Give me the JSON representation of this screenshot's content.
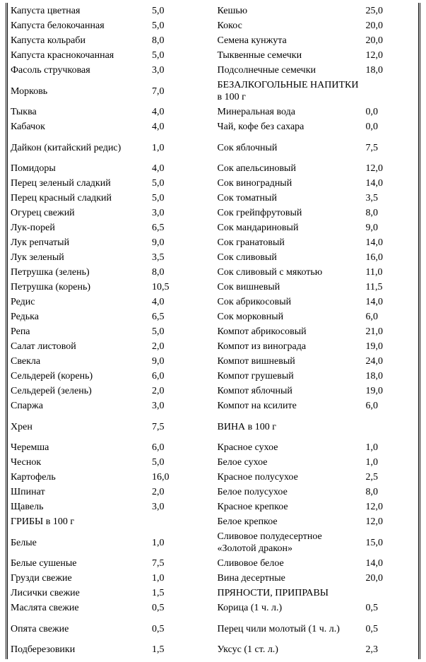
{
  "left": [
    {
      "label": "Капуста цветная",
      "value": "5,0"
    },
    {
      "label": "Капуста белокочанная",
      "value": "5,0"
    },
    {
      "label": "Капуста кольраби",
      "value": "8,0"
    },
    {
      "label": "Капуста краснокочанная",
      "value": "5,0"
    },
    {
      "label": "Фасоль стручковая",
      "value": "3,0"
    },
    {
      "label": "Морковь",
      "value": "7,0",
      "tall": true
    },
    {
      "label": "Тыква",
      "value": "4,0"
    },
    {
      "label": "Кабачок",
      "value": "4,0"
    },
    {
      "label": "Дайкон (китайский редис)",
      "value": "1,0",
      "tall": true
    },
    {
      "label": "Помидоры",
      "value": "4,0"
    },
    {
      "label": "Перец зеленый сладкий",
      "value": "5,0"
    },
    {
      "label": "Перец красный сладкий",
      "value": "5,0"
    },
    {
      "label": "Огурец свежий",
      "value": "3,0"
    },
    {
      "label": "Лук-порей",
      "value": "6,5"
    },
    {
      "label": "Лук репчатый",
      "value": "9,0"
    },
    {
      "label": "Лук зеленый",
      "value": "3,5"
    },
    {
      "label": "Петрушка (зелень)",
      "value": "8,0"
    },
    {
      "label": "Петрушка (корень)",
      "value": "10,5"
    },
    {
      "label": "Редис",
      "value": "4,0"
    },
    {
      "label": "Редька",
      "value": "6,5"
    },
    {
      "label": "Репа",
      "value": "5,0"
    },
    {
      "label": "Салат листовой",
      "value": "2,0"
    },
    {
      "label": "Свекла",
      "value": "9,0"
    },
    {
      "label": "Сельдерей (корень)",
      "value": "6,0"
    },
    {
      "label": "Сельдерей (зелень)",
      "value": "2,0"
    },
    {
      "label": "Спаржа",
      "value": "3,0"
    },
    {
      "label": "Хрен",
      "value": "7,5",
      "tall": true
    },
    {
      "label": "Черемша",
      "value": "6,0"
    },
    {
      "label": "Чеснок",
      "value": "5,0"
    },
    {
      "label": "Картофель",
      "value": "16,0"
    },
    {
      "label": "Шпинат",
      "value": "2,0"
    },
    {
      "label": "Щавель",
      "value": "3,0"
    },
    {
      "label": "ГРИБЫ в 100 г",
      "value": "",
      "header": true
    },
    {
      "label": "Белые",
      "value": "1,0",
      "tall": true
    },
    {
      "label": "Белые сушеные",
      "value": "7,5"
    },
    {
      "label": "Грузди свежие",
      "value": "1,0"
    },
    {
      "label": "Лисички свежие",
      "value": "1,5"
    },
    {
      "label": "Маслята свежие",
      "value": "0,5"
    },
    {
      "label": "Опята свежие",
      "value": "0,5",
      "tall": true
    },
    {
      "label": "Подберезовики",
      "value": "1,5"
    }
  ],
  "right": [
    {
      "label": "Кешью",
      "value": "25,0"
    },
    {
      "label": "Кокос",
      "value": "20,0"
    },
    {
      "label": "Семена кунжута",
      "value": "20,0"
    },
    {
      "label": "Тыквенные семечки",
      "value": "12,0"
    },
    {
      "label": "Подсолнечные семечки",
      "value": "18,0"
    },
    {
      "label": "БЕЗАЛКОГОЛЬНЫЕ НАПИТКИ в 100 г",
      "value": "",
      "header": true,
      "tall": true
    },
    {
      "label": "Минеральная вода",
      "value": "0,0"
    },
    {
      "label": "Чай, кофе без сахара",
      "value": "0,0"
    },
    {
      "label": "Сок яблочный",
      "value": "7,5",
      "tall": true
    },
    {
      "label": "Сок апельсиновый",
      "value": "12,0"
    },
    {
      "label": "Сок виноградный",
      "value": "14,0"
    },
    {
      "label": "Сок томатный",
      "value": "3,5"
    },
    {
      "label": "Сок грейпфрутовый",
      "value": "8,0"
    },
    {
      "label": "Сок мандариновый",
      "value": "9,0"
    },
    {
      "label": "Сок гранатовый",
      "value": "14,0"
    },
    {
      "label": "Сок сливовый",
      "value": "16,0"
    },
    {
      "label": "Сок сливовый с мякотью",
      "value": "11,0"
    },
    {
      "label": "Сок вишневый",
      "value": "11,5"
    },
    {
      "label": "Сок абрикосовый",
      "value": "14,0"
    },
    {
      "label": "Сок морковный",
      "value": "6,0"
    },
    {
      "label": "Компот абрикосовый",
      "value": "21,0"
    },
    {
      "label": "Компот из винограда",
      "value": "19,0"
    },
    {
      "label": "Компот вишневый",
      "value": "24,0"
    },
    {
      "label": "Компот грушевый",
      "value": "18,0"
    },
    {
      "label": "Компот яблочный",
      "value": "19,0"
    },
    {
      "label": "Компот на ксилите",
      "value": "6,0"
    },
    {
      "label": "ВИНА в 100 г",
      "value": "",
      "header": true,
      "tall": true
    },
    {
      "label": "Красное сухое",
      "value": "1,0"
    },
    {
      "label": "Белое сухое",
      "value": "1,0"
    },
    {
      "label": "Красное полусухое",
      "value": "2,5"
    },
    {
      "label": "Белое полусухое",
      "value": "8,0"
    },
    {
      "label": "Красное крепкое",
      "value": "12,0"
    },
    {
      "label": "Белое крепкое",
      "value": "12,0"
    },
    {
      "label": "Сливовое полудесертное «Золотой дракон»",
      "value": "15,0",
      "tall": true
    },
    {
      "label": "Сливовое белое",
      "value": "14,0"
    },
    {
      "label": "Вина десертные",
      "value": "20,0"
    },
    {
      "label": "ПРЯНОСТИ, ПРИПРАВЫ",
      "value": "",
      "header": true
    },
    {
      "label": "Корица (1 ч. л.)",
      "value": "0,5"
    },
    {
      "label": "Перец чили молотый (1 ч. л.)",
      "value": "0,5",
      "tall": true
    },
    {
      "label": "Уксус (1 ст. л.)",
      "value": "2,3"
    }
  ]
}
